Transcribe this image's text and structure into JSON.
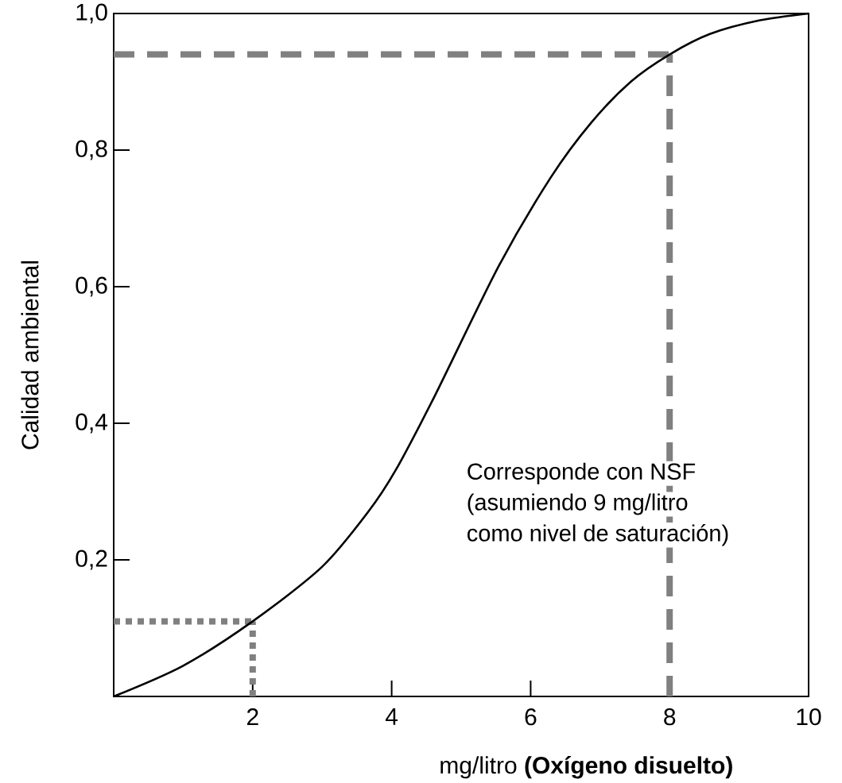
{
  "chart_data": {
    "type": "line",
    "xlabel": "mg/litro **(Oxígeno disuelto)**",
    "ylabel": "Calidad ambiental",
    "x": [
      0,
      1,
      2,
      3,
      3.66,
      4.05,
      4.62,
      5.54,
      6.29,
      6.87,
      7.44,
      8,
      8.58,
      9.3,
      10
    ],
    "series": [
      {
        "color": "#000000",
        "values": [
          0,
          0.045,
          0.11,
          0.19,
          0.27,
          0.33,
          0.44,
          0.63,
          0.76,
          0.84,
          0.9,
          0.94,
          0.97,
          0.99,
          1.0
        ]
      }
    ],
    "xlim": [
      0,
      10
    ],
    "ylim": [
      0,
      1.0
    ],
    "xticks": [
      2,
      4,
      6,
      8,
      10
    ],
    "yticks": [
      {
        "value": 0.2,
        "label": "0,2"
      },
      {
        "value": 0.4,
        "label": "0,4"
      },
      {
        "value": 0.6,
        "label": "0,6"
      },
      {
        "value": 0.8,
        "label": "0,8"
      },
      {
        "value": 1.0,
        "label": "1,0"
      }
    ],
    "ref_lines": [
      {
        "axis": "y",
        "value": 0.94,
        "color": "#808080",
        "line_style": "dashed"
      },
      {
        "axis": "x",
        "value": 8,
        "color": "#808080",
        "line_style": "dashed"
      },
      {
        "axis": "y",
        "value": 0.11,
        "color": "#808080",
        "line_style": "dotted"
      },
      {
        "axis": "x",
        "value": 2,
        "color": "#808080",
        "line_style": "dotted"
      }
    ],
    "annotations": [
      "Corresponde con NSF",
      "(asumiendo 9 mg/litro",
      "como nivel de saturación)"
    ],
    "grid": false,
    "marker": "none",
    "line_style": "solid"
  }
}
